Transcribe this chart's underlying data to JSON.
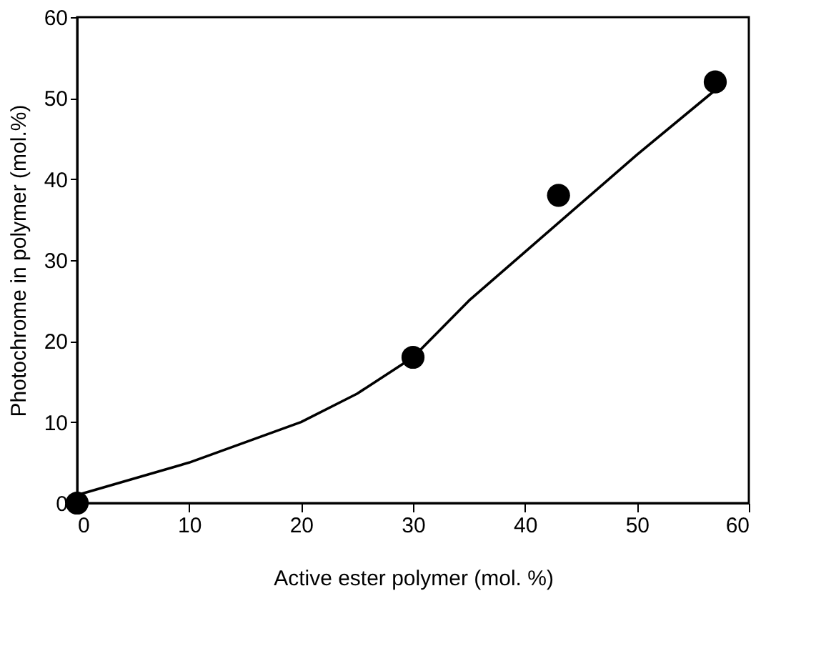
{
  "chart_data": {
    "type": "scatter",
    "xlabel": "Active ester polymer (mol. %)",
    "ylabel": "Photochrome in polymer (mol.%)",
    "xlim": [
      0,
      60
    ],
    "ylim": [
      0,
      60
    ],
    "xticks": [
      0,
      10,
      20,
      30,
      40,
      50,
      60
    ],
    "yticks": [
      0,
      10,
      20,
      30,
      40,
      50,
      60
    ],
    "grid": false,
    "series": [
      {
        "type": "line",
        "color": "#000000",
        "line_style": "solid",
        "marker": "none",
        "x": [
          0,
          10,
          20,
          25,
          30,
          35,
          40,
          45,
          50,
          57
        ],
        "values": [
          1,
          5,
          10,
          13.5,
          18,
          25,
          31,
          37,
          43,
          51
        ]
      },
      {
        "color": "#000000",
        "marker": "circle",
        "x": [
          0,
          30,
          43,
          57
        ],
        "values": [
          0,
          18,
          38,
          52
        ]
      }
    ]
  }
}
